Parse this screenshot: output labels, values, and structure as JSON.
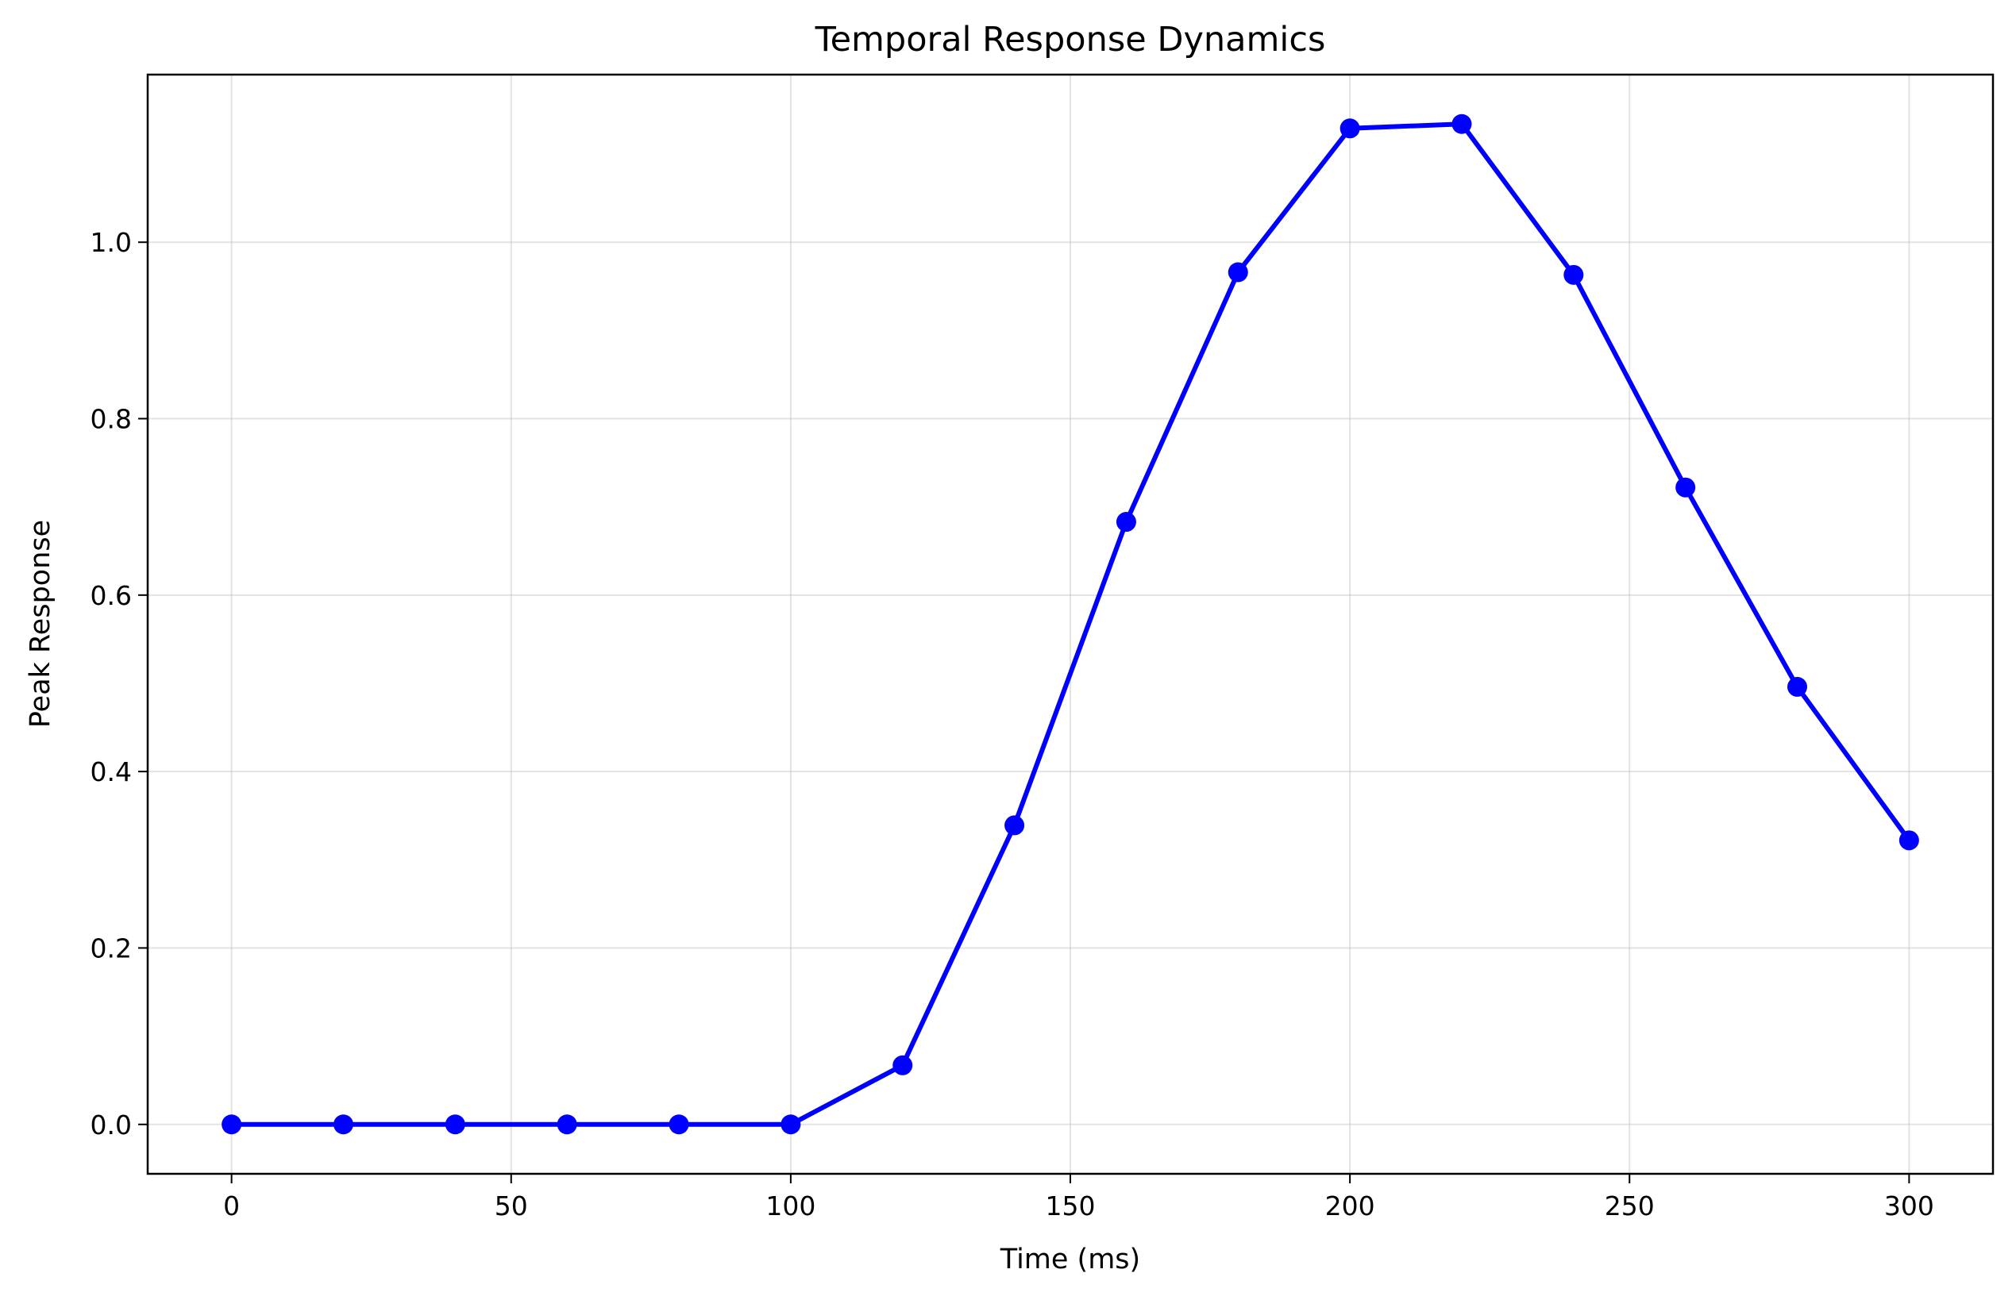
{
  "chart_data": {
    "type": "line",
    "title": "Temporal Response Dynamics",
    "xlabel": "Time (ms)",
    "ylabel": "Peak Response",
    "xlim": [
      -15,
      315
    ],
    "ylim": [
      -0.056,
      1.19
    ],
    "xticks": [
      0,
      50,
      100,
      150,
      200,
      250,
      300
    ],
    "yticks": [
      0.0,
      0.2,
      0.4,
      0.6,
      0.8,
      1.0
    ],
    "xtick_labels": [
      "0",
      "50",
      "100",
      "150",
      "200",
      "250",
      "300"
    ],
    "ytick_labels": [
      "0.0",
      "0.2",
      "0.4",
      "0.6",
      "0.8",
      "1.0"
    ],
    "grid": true,
    "series": [
      {
        "color": "#0000ff",
        "marker": "circle",
        "x": [
          0,
          20,
          40,
          60,
          80,
          100,
          120,
          140,
          160,
          180,
          200,
          220,
          240,
          260,
          280,
          300
        ],
        "y": [
          0.0,
          0.0,
          0.0,
          0.0,
          0.0,
          0.0,
          0.067,
          0.339,
          0.683,
          0.966,
          1.129,
          1.134,
          0.963,
          0.722,
          0.496,
          0.322
        ]
      }
    ]
  }
}
